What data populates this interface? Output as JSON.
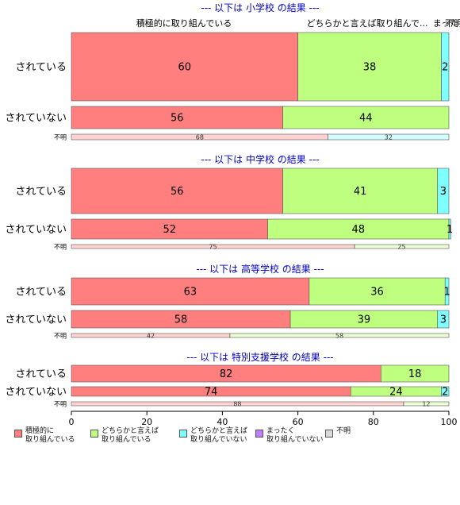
{
  "colors": {
    "positive": "#FF7F7F",
    "somewhat_positive": "#BFFF7F",
    "somewhat_negative": "#7FFFFF",
    "negative": "#BF7FFF",
    "unknown": "#D9D9D9",
    "section_title": "#0000CC"
  },
  "legend": [
    {
      "label": "積極的に\n取り組んでいる",
      "color": "#FF7F7F"
    },
    {
      "label": "どちらかと言えば\n取り組んでいる",
      "color": "#BFFF7F"
    },
    {
      "label": "どちらかと言えば\n取り組んでいない",
      "color": "#7FFFFF"
    },
    {
      "label": "まったく\n取り組んでいない",
      "color": "#BF7FFF"
    },
    {
      "label": "不明",
      "color": "#D9D9D9"
    }
  ],
  "top_labels": {
    "left": "積極的に取り組んでいる",
    "right": "どちらかと言えば取り組んで...",
    "overlap": "まった",
    "far_right": "不明"
  },
  "chart_data": {
    "type": "bar",
    "orientation": "horizontal-stacked-100",
    "xlim": [
      0,
      100
    ],
    "xticks": [
      "0",
      "20",
      "40",
      "60",
      "80",
      "100"
    ],
    "categories_order": [
      "積極的に取り組んでいる",
      "どちらかと言えば取り組んでいる",
      "どちらかと言えば取り組んでいない",
      "まったく取り組んでいない",
      "不明"
    ],
    "panels": [
      {
        "title": "--- 以下は 小学校 の結果 ---",
        "rows": [
          {
            "label": "されている",
            "values": [
              60,
              38,
              2,
              0,
              0
            ],
            "value_labels": [
              "60",
              "38",
              "2",
              "",
              ""
            ]
          },
          {
            "label": "されていない",
            "values": [
              56,
              44,
              0,
              0,
              0
            ],
            "value_labels": [
              "56",
              "44",
              "",
              "",
              ""
            ]
          },
          {
            "label": "不明",
            "values": [
              68,
              0,
              32,
              0,
              0
            ],
            "value_labels": [
              "68",
              "",
              "32",
              "",
              ""
            ],
            "small": true
          }
        ]
      },
      {
        "title": "--- 以下は 中学校 の結果 ---",
        "rows": [
          {
            "label": "されている",
            "values": [
              56,
              41,
              3,
              0,
              0
            ],
            "value_labels": [
              "56",
              "41",
              "3",
              "",
              ""
            ]
          },
          {
            "label": "されていない",
            "values": [
              52,
              48,
              0.5,
              0,
              0
            ],
            "value_labels": [
              "52",
              "48",
              "1",
              "",
              ""
            ]
          },
          {
            "label": "不明",
            "values": [
              75,
              25,
              0,
              0,
              0
            ],
            "value_labels": [
              "75",
              "25",
              "",
              "",
              ""
            ],
            "small": true
          }
        ]
      },
      {
        "title": "--- 以下は 高等学校 の結果 ---",
        "rows": [
          {
            "label": "されている",
            "values": [
              63,
              36,
              1,
              0,
              0
            ],
            "value_labels": [
              "63",
              "36",
              "1",
              "",
              ""
            ]
          },
          {
            "label": "されていない",
            "values": [
              58,
              39,
              3,
              0,
              0
            ],
            "value_labels": [
              "58",
              "39",
              "3",
              "",
              ""
            ]
          },
          {
            "label": "不明",
            "values": [
              42,
              58,
              0,
              0,
              0
            ],
            "value_labels": [
              "42",
              "58",
              "",
              "",
              ""
            ],
            "small": true
          }
        ]
      },
      {
        "title": "--- 以下は 特別支援学校 の結果 ---",
        "rows": [
          {
            "label": "されている",
            "values": [
              82,
              18,
              0,
              0,
              0
            ],
            "value_labels": [
              "82",
              "18",
              "",
              "",
              ""
            ]
          },
          {
            "label": "されていない",
            "values": [
              74,
              24,
              2,
              0,
              0
            ],
            "value_labels": [
              "74",
              "24",
              "2",
              "",
              ""
            ]
          },
          {
            "label": "不明",
            "values": [
              88,
              12,
              0,
              0,
              0
            ],
            "value_labels": [
              "88",
              "12",
              "",
              "",
              ""
            ],
            "small": true
          }
        ]
      }
    ]
  }
}
